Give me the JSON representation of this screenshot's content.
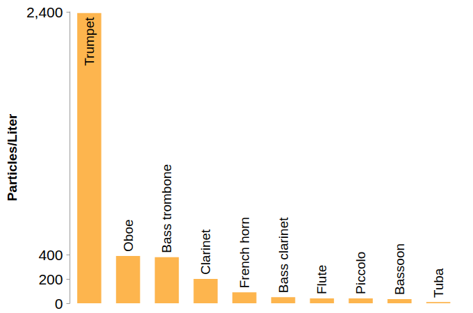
{
  "chart_data": {
    "type": "bar",
    "ylabel": "Particles/Liter",
    "categories": [
      "Trumpet",
      "Oboe",
      "Bass trombone",
      "Clarinet",
      "French horn",
      "Bass clarinet",
      "Flute",
      "Piccolo",
      "Bassoon",
      "Tuba"
    ],
    "values": [
      2390,
      390,
      380,
      200,
      90,
      50,
      40,
      40,
      35,
      10
    ],
    "color": "#fdb54e",
    "ylim": [
      0,
      2400
    ],
    "yticks": [
      0,
      200,
      400,
      {
        "value": 2400,
        "label": "2,400"
      }
    ],
    "grid": false,
    "tick_labels": "y"
  }
}
